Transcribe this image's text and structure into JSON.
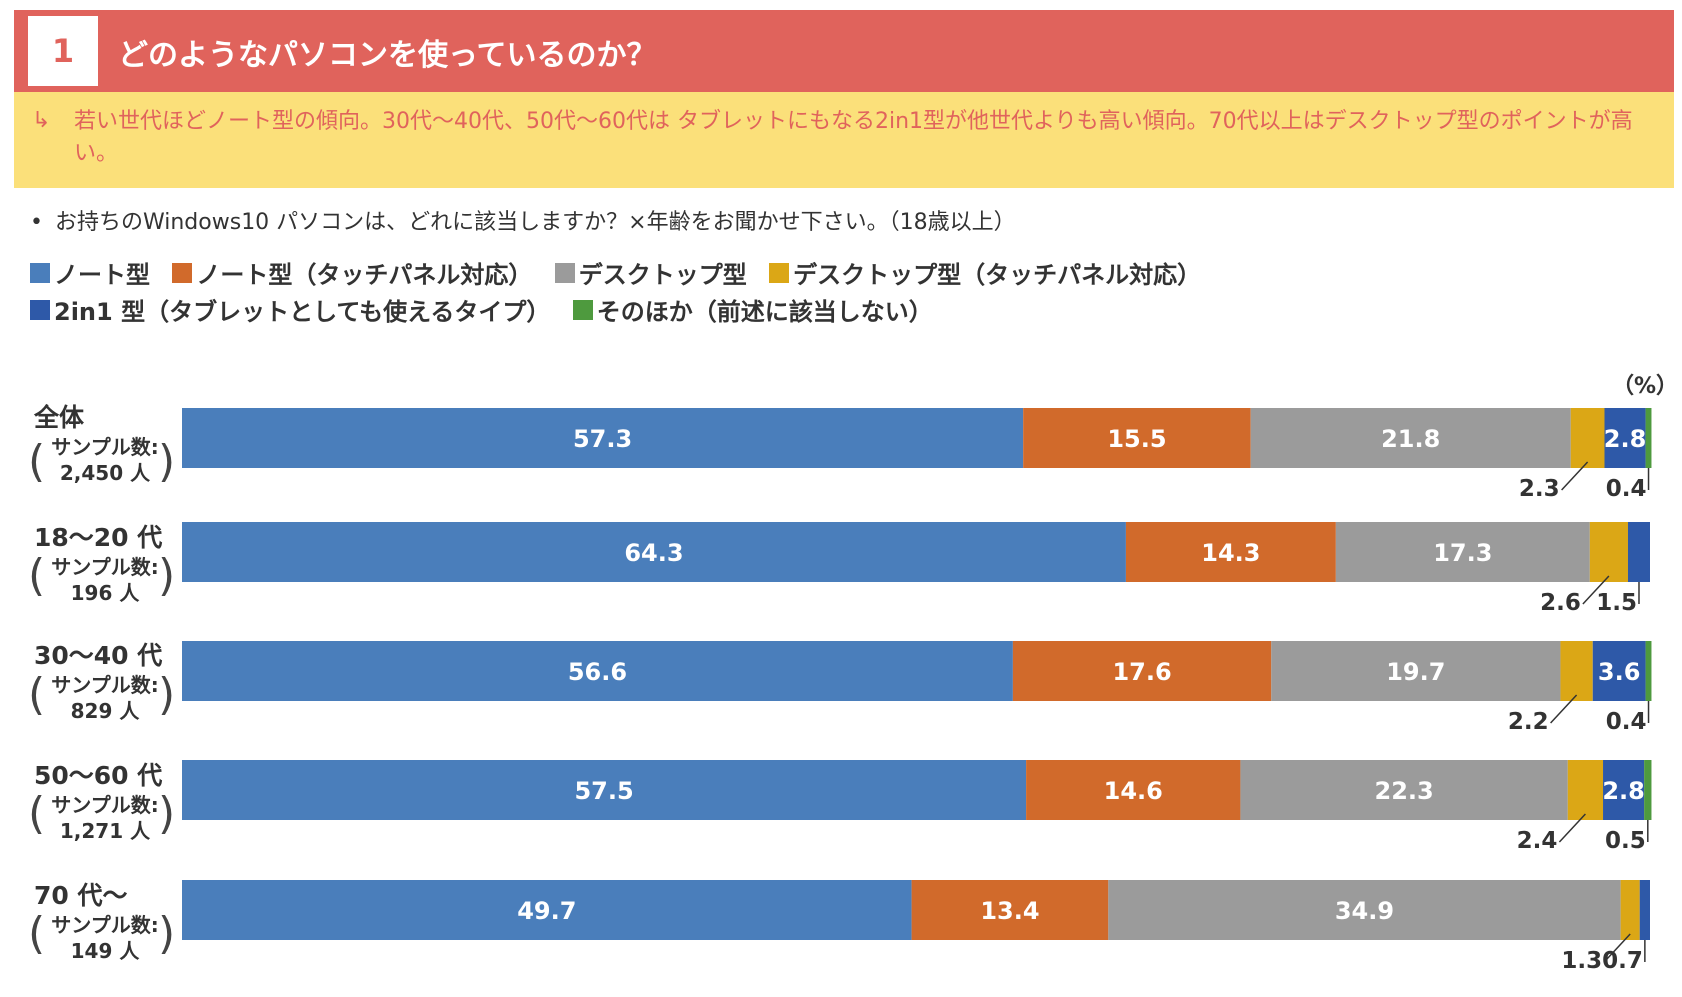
{
  "header": {
    "number": "1",
    "title": "どのようなパソコンを使っているのか？"
  },
  "summary": {
    "arrow": "↳",
    "text": "若い世代ほどノート型の傾向。30代～40代、50代～60代は タブレットにもなる2in1型が他世代よりも高い傾向。70代以上はデスクトップ型のポイントが高い。"
  },
  "question": {
    "bullet": "•",
    "text": "お持ちのWindows10 パソコンは、どれに該当しますか？×年齢をお聞かせ下さい。（18歳以上）"
  },
  "chart_data": {
    "type": "bar",
    "orientation": "horizontal",
    "stacked": true,
    "unit": "（%）",
    "categories": [
      {
        "name": "全体",
        "sample_label": "サンプル数:",
        "sample": "2,450 人"
      },
      {
        "name": "18～20 代",
        "sample_label": "サンプル数:",
        "sample": "196 人"
      },
      {
        "name": "30～40 代",
        "sample_label": "サンプル数:",
        "sample": "829 人"
      },
      {
        "name": "50～60 代",
        "sample_label": "サンプル数:",
        "sample": "1,271 人"
      },
      {
        "name": "70 代～",
        "sample_label": "サンプル数:",
        "sample": "149 人"
      }
    ],
    "series": [
      {
        "name": "ノート型",
        "color": "#4a7ebb",
        "values": [
          57.3,
          64.3,
          56.6,
          57.5,
          49.7
        ]
      },
      {
        "name": "ノート型（タッチパネル対応）",
        "color": "#d16a2b",
        "values": [
          15.5,
          14.3,
          17.6,
          14.6,
          13.4
        ]
      },
      {
        "name": "デスクトップ型",
        "color": "#9b9b9b",
        "values": [
          21.8,
          17.3,
          19.7,
          22.3,
          34.9
        ]
      },
      {
        "name": "デスクトップ型（タッチパネル対応）",
        "color": "#dba716",
        "values": [
          2.3,
          2.6,
          2.2,
          2.4,
          1.3
        ]
      },
      {
        "name": "2in1 型（タブレットとしても使えるタイプ）",
        "color": "#2e59a8",
        "values": [
          2.8,
          1.5,
          3.6,
          2.8,
          0.7
        ]
      },
      {
        "name": "そのほか（前述に該当しない）",
        "color": "#4e9a3e",
        "values": [
          0.4,
          0.0,
          0.4,
          0.5,
          0.0
        ]
      }
    ],
    "data_labels": [
      {
        "inside": [
          "57.3",
          "15.5",
          "21.8",
          "",
          "2.8",
          ""
        ],
        "outside": [
          "2.3",
          "0.4"
        ]
      },
      {
        "inside": [
          "64.3",
          "14.3",
          "17.3",
          "",
          "",
          ""
        ],
        "outside": [
          "2.6",
          "1.5"
        ]
      },
      {
        "inside": [
          "56.6",
          "17.6",
          "19.7",
          "",
          "3.6",
          ""
        ],
        "outside": [
          "2.2",
          "0.4"
        ]
      },
      {
        "inside": [
          "57.5",
          "14.6",
          "22.3",
          "",
          "2.8",
          ""
        ],
        "outside": [
          "2.4",
          "0.5"
        ]
      },
      {
        "inside": [
          "49.7",
          "13.4",
          "34.9",
          "",
          "",
          ""
        ],
        "outside": [
          "1.3",
          "0.7"
        ]
      }
    ],
    "xlim": [
      0,
      100
    ],
    "legend_position": "top-left",
    "grid": false
  }
}
